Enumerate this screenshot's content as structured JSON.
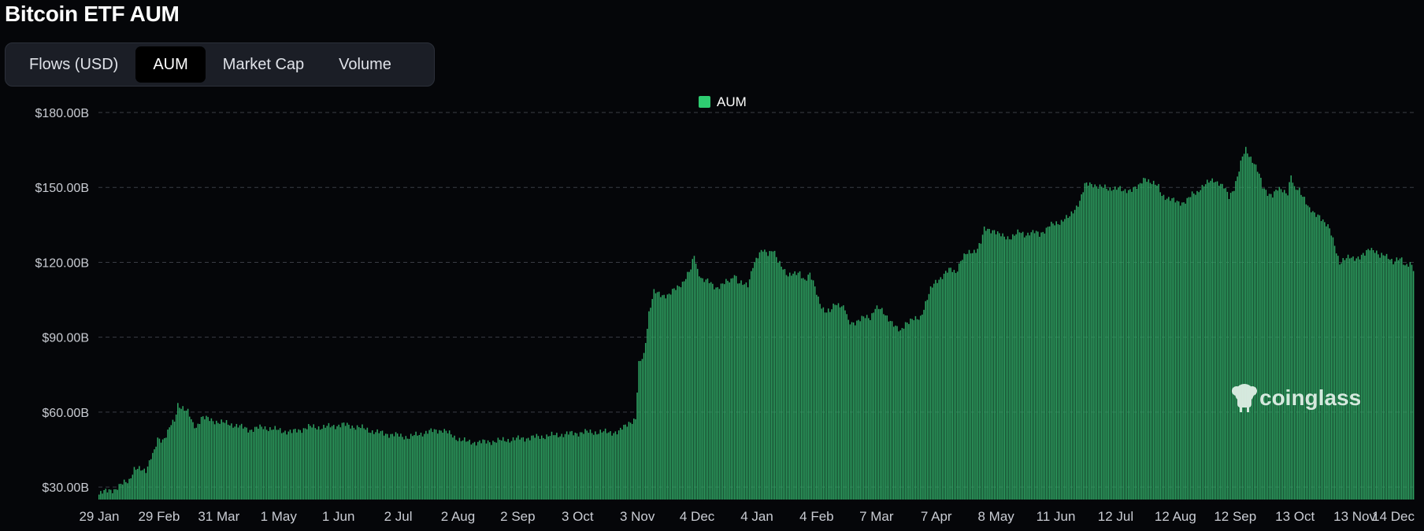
{
  "title": "Bitcoin ETF AUM",
  "tabs": [
    {
      "label": "Flows (USD)",
      "active": false
    },
    {
      "label": "AUM",
      "active": true
    },
    {
      "label": "Market Cap",
      "active": false
    },
    {
      "label": "Volume",
      "active": false
    }
  ],
  "watermark": "coinglass",
  "colors": {
    "bar": "#2fa463",
    "legend": "#2ecc71",
    "grid": "#3a3d45",
    "background": "#050609"
  },
  "chart_data": {
    "type": "bar",
    "legend": "AUM",
    "legend_position": "top-center",
    "grid": true,
    "ylim": [
      25,
      180
    ],
    "y_ticks": [
      {
        "value": 30,
        "label": "$30.00B"
      },
      {
        "value": 60,
        "label": "$60.00B"
      },
      {
        "value": 90,
        "label": "$90.00B"
      },
      {
        "value": 120,
        "label": "$120.00B"
      },
      {
        "value": 150,
        "label": "$150.00B"
      },
      {
        "value": 180,
        "label": "$180.00B"
      }
    ],
    "x_tick_labels": [
      "29 Jan",
      "29 Feb",
      "31 Mar",
      "1 May",
      "1 Jun",
      "2 Jul",
      "2 Aug",
      "2 Sep",
      "3 Oct",
      "3 Nov",
      "4 Dec",
      "4 Jan",
      "4 Feb",
      "7 Mar",
      "7 Apr",
      "8 May",
      "11 Jun",
      "12 Jul",
      "12 Aug",
      "12 Sep",
      "13 Oct",
      "13 Nov",
      "14 Dec"
    ],
    "series": [
      {
        "name": "AUM",
        "unit": "B USD",
        "points": [
          [
            0,
            27
          ],
          [
            6,
            29
          ],
          [
            10,
            29
          ],
          [
            12,
            30
          ],
          [
            15,
            32
          ],
          [
            18,
            33
          ],
          [
            21,
            37
          ],
          [
            25,
            37
          ],
          [
            28,
            37
          ],
          [
            31,
            42
          ],
          [
            33,
            44
          ],
          [
            35,
            49
          ],
          [
            38,
            49
          ],
          [
            40,
            51
          ],
          [
            43,
            55
          ],
          [
            45,
            56
          ],
          [
            47,
            63
          ],
          [
            50,
            62
          ],
          [
            53,
            60
          ],
          [
            56,
            55
          ],
          [
            58,
            54
          ],
          [
            61,
            58
          ],
          [
            66,
            57
          ],
          [
            72,
            56
          ],
          [
            80,
            55
          ],
          [
            90,
            53
          ],
          [
            98,
            54
          ],
          [
            105,
            53
          ],
          [
            115,
            52
          ],
          [
            125,
            54
          ],
          [
            135,
            54
          ],
          [
            145,
            55
          ],
          [
            155,
            54
          ],
          [
            165,
            52
          ],
          [
            175,
            51
          ],
          [
            185,
            50
          ],
          [
            195,
            52
          ],
          [
            205,
            53
          ],
          [
            212,
            50
          ],
          [
            220,
            48
          ],
          [
            230,
            48
          ],
          [
            245,
            49
          ],
          [
            260,
            50
          ],
          [
            275,
            51
          ],
          [
            290,
            52
          ],
          [
            303,
            52
          ],
          [
            310,
            52
          ],
          [
            316,
            56
          ],
          [
            320,
            57
          ],
          [
            322,
            79
          ],
          [
            325,
            83
          ],
          [
            328,
            100
          ],
          [
            331,
            108
          ],
          [
            335,
            107
          ],
          [
            340,
            107
          ],
          [
            345,
            110
          ],
          [
            348,
            112
          ],
          [
            350,
            114
          ],
          [
            353,
            117
          ],
          [
            355,
            123
          ],
          [
            357,
            117
          ],
          [
            360,
            113
          ],
          [
            364,
            112
          ],
          [
            368,
            110
          ],
          [
            372,
            111
          ],
          [
            374,
            112
          ],
          [
            377,
            113
          ],
          [
            379,
            116
          ],
          [
            381,
            112
          ],
          [
            384,
            111
          ],
          [
            387,
            111
          ],
          [
            390,
            119
          ],
          [
            393,
            122
          ],
          [
            396,
            125
          ],
          [
            399,
            124
          ],
          [
            402,
            125
          ],
          [
            405,
            120
          ],
          [
            408,
            118
          ],
          [
            411,
            115
          ],
          [
            415,
            115
          ],
          [
            418,
            116
          ],
          [
            421,
            113
          ],
          [
            424,
            115
          ],
          [
            427,
            110
          ],
          [
            430,
            104
          ],
          [
            433,
            100
          ],
          [
            436,
            100
          ],
          [
            439,
            104
          ],
          [
            442,
            103
          ],
          [
            445,
            101
          ],
          [
            447,
            96
          ],
          [
            450,
            96
          ],
          [
            454,
            97
          ],
          [
            457,
            98
          ],
          [
            460,
            98
          ],
          [
            463,
            102
          ],
          [
            466,
            101
          ],
          [
            469,
            99
          ],
          [
            472,
            97
          ],
          [
            475,
            94
          ],
          [
            478,
            92
          ],
          [
            481,
            96
          ],
          [
            485,
            97
          ],
          [
            488,
            97
          ],
          [
            490,
            98
          ],
          [
            493,
            104
          ],
          [
            496,
            109
          ],
          [
            499,
            112
          ],
          [
            502,
            114
          ],
          [
            505,
            116
          ],
          [
            508,
            117
          ],
          [
            511,
            116
          ],
          [
            514,
            121
          ],
          [
            517,
            123
          ],
          [
            520,
            124
          ],
          [
            523,
            125
          ],
          [
            526,
            128
          ],
          [
            528,
            133
          ],
          [
            531,
            133
          ],
          [
            534,
            133
          ],
          [
            537,
            131
          ],
          [
            540,
            130
          ],
          [
            543,
            130
          ],
          [
            546,
            131
          ],
          [
            549,
            132
          ],
          [
            552,
            131
          ],
          [
            555,
            132
          ],
          [
            558,
            132
          ],
          [
            561,
            131
          ],
          [
            564,
            133
          ],
          [
            567,
            135
          ],
          [
            570,
            135
          ],
          [
            573,
            136
          ],
          [
            576,
            138
          ],
          [
            579,
            138
          ],
          [
            582,
            141
          ],
          [
            585,
            145
          ],
          [
            588,
            151
          ],
          [
            591,
            151
          ],
          [
            595,
            151
          ],
          [
            599,
            150
          ],
          [
            602,
            149
          ],
          [
            605,
            150
          ],
          [
            608,
            150
          ],
          [
            611,
            148
          ],
          [
            614,
            149
          ],
          [
            617,
            150
          ],
          [
            620,
            150
          ],
          [
            622,
            152
          ],
          [
            624,
            154
          ],
          [
            626,
            153
          ],
          [
            628,
            152
          ],
          [
            630,
            151
          ],
          [
            632,
            150
          ],
          [
            634,
            147
          ],
          [
            637,
            146
          ],
          [
            640,
            145
          ],
          [
            643,
            144
          ],
          [
            646,
            144
          ],
          [
            649,
            145
          ],
          [
            652,
            147
          ],
          [
            655,
            148
          ],
          [
            657,
            150
          ],
          [
            659,
            151
          ],
          [
            662,
            152
          ],
          [
            665,
            153
          ],
          [
            668,
            152
          ],
          [
            671,
            150
          ],
          [
            674,
            146
          ],
          [
            677,
            150
          ],
          [
            680,
            157
          ],
          [
            682,
            162
          ],
          [
            684,
            165
          ],
          [
            686,
            163
          ],
          [
            689,
            160
          ],
          [
            692,
            155
          ],
          [
            694,
            150
          ],
          [
            697,
            148
          ],
          [
            700,
            147
          ],
          [
            703,
            149
          ],
          [
            706,
            149
          ],
          [
            709,
            148
          ],
          [
            711,
            155
          ],
          [
            713,
            149
          ],
          [
            716,
            149
          ],
          [
            719,
            146
          ],
          [
            722,
            141
          ],
          [
            725,
            139
          ],
          [
            728,
            139
          ],
          [
            731,
            136
          ],
          [
            734,
            133
          ],
          [
            737,
            127
          ],
          [
            740,
            120
          ],
          [
            743,
            121
          ],
          [
            746,
            122
          ],
          [
            749,
            122
          ],
          [
            752,
            122
          ],
          [
            755,
            123
          ],
          [
            758,
            126
          ],
          [
            761,
            125
          ],
          [
            764,
            122
          ],
          [
            767,
            123
          ],
          [
            770,
            122
          ],
          [
            772,
            120
          ],
          [
            775,
            121
          ],
          [
            777,
            121
          ],
          [
            779,
            119
          ],
          [
            782,
            120
          ],
          [
            784,
            117
          ]
        ]
      }
    ]
  }
}
